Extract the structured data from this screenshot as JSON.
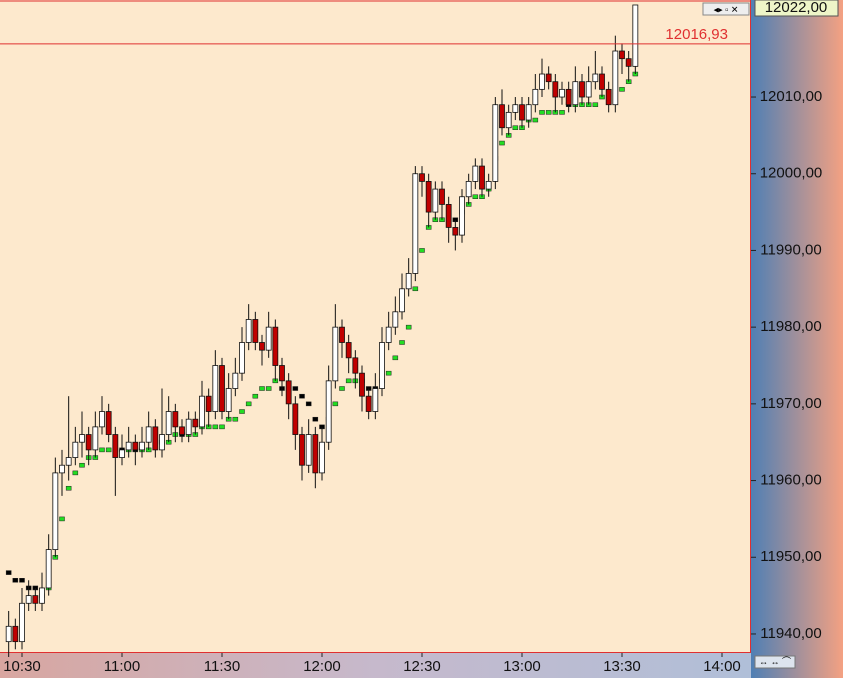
{
  "chart_data": {
    "type": "candlestick",
    "x": [
      "10:26",
      "10:28",
      "10:30",
      "10:32",
      "10:34",
      "10:36",
      "10:38",
      "10:40",
      "10:42",
      "10:44",
      "10:46",
      "10:48",
      "10:50",
      "10:52",
      "10:54",
      "10:56",
      "10:58",
      "11:00",
      "11:02",
      "11:04",
      "11:06",
      "11:08",
      "11:10",
      "11:12",
      "11:14",
      "11:16",
      "11:18",
      "11:20",
      "11:22",
      "11:24",
      "11:26",
      "11:28",
      "11:30",
      "11:32",
      "11:34",
      "11:36",
      "11:38",
      "11:40",
      "11:42",
      "11:44",
      "11:46",
      "11:48",
      "11:50",
      "11:52",
      "11:54",
      "11:56",
      "11:58",
      "12:00",
      "12:02",
      "12:04",
      "12:06",
      "12:08",
      "12:10",
      "12:12",
      "12:14",
      "12:16",
      "12:18",
      "12:20",
      "12:22",
      "12:24",
      "12:26",
      "12:28",
      "12:30",
      "12:32",
      "12:34",
      "12:36",
      "12:38",
      "12:40",
      "12:42",
      "12:44",
      "12:46",
      "12:48",
      "12:50",
      "12:52",
      "12:54",
      "12:56",
      "12:58",
      "13:00",
      "13:02",
      "13:04",
      "13:06",
      "13:08",
      "13:10",
      "13:12",
      "13:14",
      "13:16",
      "13:18",
      "13:20",
      "13:22",
      "13:24",
      "13:26",
      "13:28",
      "13:30",
      "13:32",
      "13:34"
    ],
    "ohlc": [
      [
        11939,
        11943,
        11937,
        11941
      ],
      [
        11941,
        11942,
        11938,
        11939
      ],
      [
        11939,
        11946,
        11938,
        11944
      ],
      [
        11944,
        11947,
        11943,
        11945
      ],
      [
        11945,
        11946,
        11943,
        11944
      ],
      [
        11944,
        11948,
        11943,
        11946
      ],
      [
        11946,
        11953,
        11945,
        11951
      ],
      [
        11951,
        11963,
        11950,
        11961
      ],
      [
        11961,
        11964,
        11958,
        11962
      ],
      [
        11962,
        11971,
        11960,
        11963
      ],
      [
        11963,
        11967,
        11962,
        11965
      ],
      [
        11965,
        11969,
        11963,
        11966
      ],
      [
        11966,
        11967,
        11962,
        11964
      ],
      [
        11964,
        11969,
        11963,
        11967
      ],
      [
        11967,
        11971,
        11966,
        11969
      ],
      [
        11969,
        11970,
        11965,
        11966
      ],
      [
        11966,
        11967,
        11958,
        11963
      ],
      [
        11963,
        11966,
        11962,
        11964
      ],
      [
        11964,
        11967,
        11963,
        11965
      ],
      [
        11965,
        11966,
        11962,
        11964
      ],
      [
        11964,
        11967,
        11963,
        11965
      ],
      [
        11965,
        11969,
        11964,
        11967
      ],
      [
        11967,
        11968,
        11963,
        11964
      ],
      [
        11964,
        11972,
        11963,
        11966
      ],
      [
        11966,
        11971,
        11965,
        11969
      ],
      [
        11969,
        11970,
        11965,
        11967
      ],
      [
        11967,
        11968,
        11965,
        11966
      ],
      [
        11966,
        11969,
        11965,
        11968
      ],
      [
        11968,
        11969,
        11966,
        11967
      ],
      [
        11967,
        11973,
        11966,
        11971
      ],
      [
        11971,
        11972,
        11967,
        11969
      ],
      [
        11969,
        11977,
        11968,
        11975
      ],
      [
        11975,
        11976,
        11968,
        11969
      ],
      [
        11969,
        11974,
        11968,
        11972
      ],
      [
        11972,
        11976,
        11971,
        11974
      ],
      [
        11974,
        11980,
        11973,
        11978
      ],
      [
        11978,
        11983,
        11977,
        11981
      ],
      [
        11981,
        11982,
        11977,
        11978
      ],
      [
        11978,
        11979,
        11975,
        11977
      ],
      [
        11977,
        11982,
        11976,
        11980
      ],
      [
        11980,
        11981,
        11973,
        11975
      ],
      [
        11975,
        11976,
        11971,
        11973
      ],
      [
        11973,
        11974,
        11968,
        11970
      ],
      [
        11970,
        11971,
        11964,
        11966
      ],
      [
        11966,
        11967,
        11960,
        11962
      ],
      [
        11962,
        11968,
        11961,
        11966
      ],
      [
        11966,
        11967,
        11959,
        11961
      ],
      [
        11961,
        11967,
        11960,
        11965
      ],
      [
        11965,
        11975,
        11964,
        11973
      ],
      [
        11973,
        11983,
        11972,
        11980
      ],
      [
        11980,
        11981,
        11976,
        11978
      ],
      [
        11978,
        11979,
        11974,
        11976
      ],
      [
        11976,
        11977,
        11972,
        11974
      ],
      [
        11974,
        11975,
        11969,
        11971
      ],
      [
        11971,
        11972,
        11968,
        11969
      ],
      [
        11969,
        11974,
        11968,
        11972
      ],
      [
        11972,
        11980,
        11971,
        11978
      ],
      [
        11978,
        11982,
        11977,
        11980
      ],
      [
        11980,
        11984,
        11979,
        11982
      ],
      [
        11982,
        11987,
        11981,
        11985
      ],
      [
        11985,
        11989,
        11984,
        11987
      ],
      [
        11987,
        12001,
        11986,
        12000
      ],
      [
        12000,
        12001,
        11997,
        11999
      ],
      [
        11999,
        12000,
        11993,
        11995
      ],
      [
        11995,
        11999,
        11994,
        11998
      ],
      [
        11998,
        11999,
        11994,
        11996
      ],
      [
        11996,
        11997,
        11991,
        11993
      ],
      [
        11993,
        11994,
        11990,
        11992
      ],
      [
        11992,
        11998,
        11991,
        11997
      ],
      [
        11997,
        12000,
        11996,
        11999
      ],
      [
        11999,
        12002,
        11998,
        12001
      ],
      [
        12001,
        12002,
        11997,
        11998
      ],
      [
        11998,
        12000,
        11997,
        11999
      ],
      [
        11999,
        12010,
        11998,
        12009
      ],
      [
        12009,
        12011,
        12005,
        12006
      ],
      [
        12006,
        12009,
        12005,
        12008
      ],
      [
        12008,
        12010,
        12007,
        12009
      ],
      [
        12009,
        12010,
        12006,
        12007
      ],
      [
        12007,
        12010,
        12006,
        12009
      ],
      [
        12009,
        12013,
        12008,
        12011
      ],
      [
        12011,
        12015,
        12010,
        12013
      ],
      [
        12013,
        12014,
        12011,
        12012
      ],
      [
        12012,
        12013,
        12008,
        12010
      ],
      [
        12010,
        12012,
        12009,
        12011
      ],
      [
        12011,
        12012,
        12008,
        12009
      ],
      [
        12009,
        12014,
        12008,
        12012
      ],
      [
        12012,
        12013,
        12009,
        12010
      ],
      [
        12010,
        12014,
        12009,
        12012
      ],
      [
        12012,
        12016,
        12011,
        12013
      ],
      [
        12013,
        12014,
        12010,
        12011
      ],
      [
        12011,
        12012,
        12008,
        12009
      ],
      [
        12009,
        12018,
        12008,
        12016
      ],
      [
        12016,
        12017,
        12013,
        12015
      ],
      [
        12015,
        12016,
        12012,
        12014
      ],
      [
        12014,
        12022,
        12013,
        12022
      ]
    ],
    "ma": [
      11948,
      11947,
      11947,
      11946,
      11946,
      11945,
      11946,
      11950,
      11955,
      11959,
      11961,
      11962,
      11963,
      11963,
      11964,
      11964,
      11964,
      11964,
      11964,
      11964,
      11964,
      11964,
      11965,
      11965,
      11965,
      11966,
      11966,
      11966,
      11966,
      11967,
      11967,
      11967,
      11967,
      11968,
      11968,
      11969,
      11970,
      11971,
      11972,
      11972,
      11973,
      11972,
      11972,
      11972,
      11971,
      11970,
      11968,
      11967,
      11968,
      11970,
      11972,
      11973,
      11973,
      11973,
      11972,
      11972,
      11973,
      11974,
      11976,
      11978,
      11980,
      11985,
      11990,
      11993,
      11994,
      11994,
      11994,
      11994,
      11995,
      11996,
      11997,
      11997,
      11998,
      12002,
      12004,
      12005,
      12006,
      12006,
      12007,
      12007,
      12008,
      12008,
      12008,
      12008,
      12009,
      12009,
      12009,
      12009,
      12009,
      12010,
      12010,
      12011,
      12011,
      12012,
      12013
    ],
    "up_color": "#ffffff",
    "down_color": "#c00000",
    "ma_up_color": "#22dd22",
    "ma_down_color": "#000000",
    "price_line": {
      "value": 12016.93,
      "label": "12016,93"
    },
    "last_price": {
      "value": 12022,
      "label": "12022,00"
    },
    "ylim": [
      11937.65,
      12022.65
    ],
    "yticks": [
      {
        "value": 11940,
        "label": "11940,00"
      },
      {
        "value": 11950,
        "label": "11950,00"
      },
      {
        "value": 11960,
        "label": "11960,00"
      },
      {
        "value": 11970,
        "label": "11970,00"
      },
      {
        "value": 11980,
        "label": "11980,00"
      },
      {
        "value": 11990,
        "label": "11990,00"
      },
      {
        "value": 12000,
        "label": "12000,00"
      },
      {
        "value": 12010,
        "label": "12010,00"
      }
    ],
    "xticks": [
      "10:30",
      "11:00",
      "11:30",
      "12:00",
      "12:30",
      "13:00",
      "13:30",
      "14:00"
    ]
  }
}
